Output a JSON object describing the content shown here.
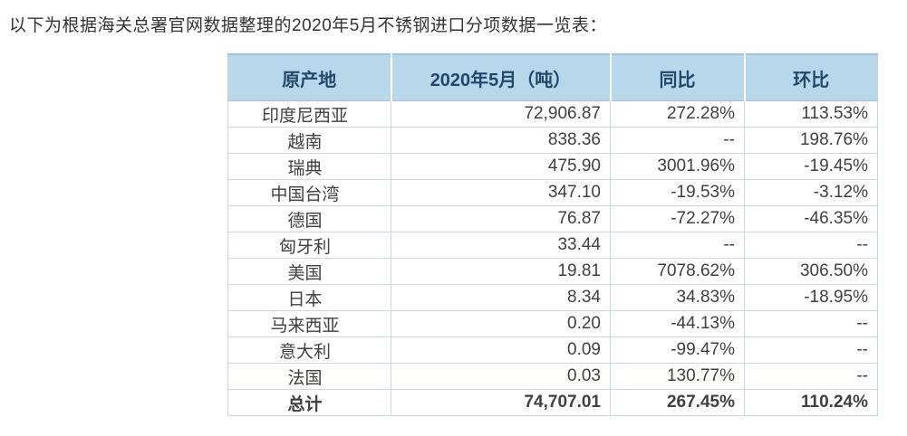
{
  "caption": "以下为根据海关总署官网数据整理的2020年5月不锈钢进口分项数据一览表：",
  "colors": {
    "header_bg": "#b9d7ea",
    "header_text": "#24466b",
    "grid_line": "#ccd9e2",
    "body_text": "#404040",
    "caption_text": "#333333"
  },
  "chart_data": {
    "type": "table",
    "title": "2020年5月不锈钢进口分项数据一览表",
    "columns": [
      "原产地",
      "2020年5月（吨）",
      "同比",
      "环比"
    ],
    "rows": [
      [
        "印度尼西亚",
        "72,906.87",
        "272.28%",
        "113.53%"
      ],
      [
        "越南",
        "838.36",
        "--",
        "198.76%"
      ],
      [
        "瑞典",
        "475.90",
        "3001.96%",
        "-19.45%"
      ],
      [
        "中国台湾",
        "347.10",
        "-19.53%",
        "-3.12%"
      ],
      [
        "德国",
        "76.87",
        "-72.27%",
        "-46.35%"
      ],
      [
        "匈牙利",
        "33.44",
        "--",
        "--"
      ],
      [
        "美国",
        "19.81",
        "7078.62%",
        "306.50%"
      ],
      [
        "日本",
        "8.34",
        "34.83%",
        "-18.95%"
      ],
      [
        "马来西亚",
        "0.20",
        "-44.13%",
        "--"
      ],
      [
        "意大利",
        "0.09",
        "-99.47%",
        "--"
      ],
      [
        "法国",
        "0.03",
        "130.77%",
        "--"
      ]
    ],
    "total_row": [
      "总计",
      "74,707.01",
      "267.45%",
      "110.24%"
    ]
  }
}
